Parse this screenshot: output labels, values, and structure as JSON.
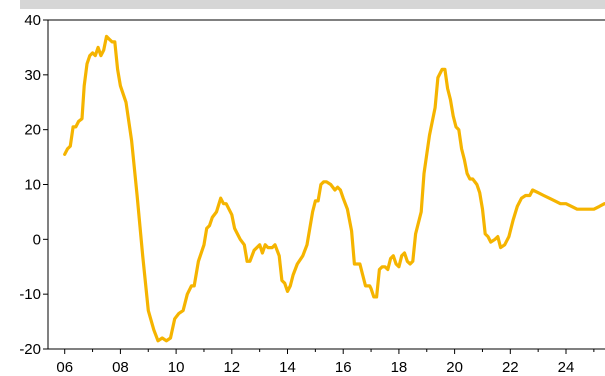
{
  "chart_data": {
    "type": "line",
    "title": "",
    "xlabel": "",
    "ylabel": "",
    "xlim": [
      2005.4,
      2025.4
    ],
    "ylim": [
      -20,
      40
    ],
    "yticks": [
      40,
      30,
      20,
      10,
      0,
      -10,
      -20
    ],
    "ytick_labels": [
      "40",
      "30",
      "20",
      "10",
      "0",
      "-10",
      "-20"
    ],
    "xticks": [
      2006,
      2008,
      2010,
      2012,
      2014,
      2016,
      2018,
      2020,
      2022,
      2024
    ],
    "xtick_labels": [
      "06",
      "08",
      "10",
      "12",
      "14",
      "16",
      "18",
      "20",
      "22",
      "24"
    ],
    "grid": false,
    "legend": "none",
    "series": [
      {
        "color": "#f5b400",
        "points": [
          [
            2006.0,
            15.5
          ],
          [
            2006.1,
            16.5
          ],
          [
            2006.2,
            17.0
          ],
          [
            2006.3,
            20.5
          ],
          [
            2006.4,
            20.5
          ],
          [
            2006.5,
            21.5
          ],
          [
            2006.62,
            22.0
          ],
          [
            2006.7,
            28.0
          ],
          [
            2006.8,
            32.0
          ],
          [
            2006.9,
            33.5
          ],
          [
            2007.0,
            34.0
          ],
          [
            2007.1,
            33.5
          ],
          [
            2007.2,
            35.0
          ],
          [
            2007.3,
            33.5
          ],
          [
            2007.4,
            34.5
          ],
          [
            2007.5,
            37.0
          ],
          [
            2007.6,
            36.5
          ],
          [
            2007.7,
            36.0
          ],
          [
            2007.8,
            36.0
          ],
          [
            2007.9,
            31.0
          ],
          [
            2008.0,
            28.0
          ],
          [
            2008.2,
            25.0
          ],
          [
            2008.4,
            18.0
          ],
          [
            2008.6,
            8.0
          ],
          [
            2008.8,
            -3.0
          ],
          [
            2009.0,
            -13.0
          ],
          [
            2009.2,
            -16.5
          ],
          [
            2009.35,
            -18.5
          ],
          [
            2009.5,
            -18.0
          ],
          [
            2009.65,
            -18.5
          ],
          [
            2009.8,
            -18.0
          ],
          [
            2009.95,
            -14.5
          ],
          [
            2010.1,
            -13.5
          ],
          [
            2010.25,
            -13.0
          ],
          [
            2010.4,
            -10.0
          ],
          [
            2010.55,
            -8.5
          ],
          [
            2010.65,
            -8.5
          ],
          [
            2010.8,
            -4.0
          ],
          [
            2011.0,
            -1.0
          ],
          [
            2011.1,
            2.0
          ],
          [
            2011.2,
            2.5
          ],
          [
            2011.3,
            4.0
          ],
          [
            2011.45,
            5.0
          ],
          [
            2011.6,
            7.5
          ],
          [
            2011.7,
            6.5
          ],
          [
            2011.8,
            6.5
          ],
          [
            2012.0,
            4.5
          ],
          [
            2012.1,
            2.0
          ],
          [
            2012.2,
            1.0
          ],
          [
            2012.3,
            0.0
          ],
          [
            2012.45,
            -1.0
          ],
          [
            2012.55,
            -4.0
          ],
          [
            2012.65,
            -4.0
          ],
          [
            2012.8,
            -2.0
          ],
          [
            2013.0,
            -1.0
          ],
          [
            2013.1,
            -2.5
          ],
          [
            2013.2,
            -1.0
          ],
          [
            2013.3,
            -1.5
          ],
          [
            2013.45,
            -1.5
          ],
          [
            2013.55,
            -1.0
          ],
          [
            2013.7,
            -3.0
          ],
          [
            2013.8,
            -7.5
          ],
          [
            2013.9,
            -8.0
          ],
          [
            2014.0,
            -9.5
          ],
          [
            2014.1,
            -8.5
          ],
          [
            2014.2,
            -6.5
          ],
          [
            2014.35,
            -4.5
          ],
          [
            2014.55,
            -3.0
          ],
          [
            2014.7,
            -1.0
          ],
          [
            2014.8,
            2.0
          ],
          [
            2014.9,
            5.0
          ],
          [
            2015.0,
            7.0
          ],
          [
            2015.1,
            7.0
          ],
          [
            2015.2,
            10.0
          ],
          [
            2015.3,
            10.5
          ],
          [
            2015.4,
            10.5
          ],
          [
            2015.55,
            10.0
          ],
          [
            2015.7,
            9.0
          ],
          [
            2015.8,
            9.5
          ],
          [
            2015.9,
            9.0
          ],
          [
            2016.0,
            7.5
          ],
          [
            2016.15,
            5.5
          ],
          [
            2016.3,
            1.5
          ],
          [
            2016.4,
            -4.5
          ],
          [
            2016.5,
            -4.5
          ],
          [
            2016.6,
            -4.5
          ],
          [
            2016.7,
            -6.5
          ],
          [
            2016.8,
            -8.5
          ],
          [
            2016.95,
            -8.5
          ],
          [
            2017.0,
            -9.0
          ],
          [
            2017.1,
            -10.5
          ],
          [
            2017.2,
            -10.5
          ],
          [
            2017.3,
            -5.5
          ],
          [
            2017.4,
            -5.0
          ],
          [
            2017.5,
            -5.0
          ],
          [
            2017.6,
            -5.5
          ],
          [
            2017.7,
            -3.5
          ],
          [
            2017.8,
            -3.0
          ],
          [
            2017.9,
            -4.5
          ],
          [
            2018.0,
            -5.0
          ],
          [
            2018.1,
            -3.0
          ],
          [
            2018.2,
            -2.5
          ],
          [
            2018.3,
            -4.0
          ],
          [
            2018.4,
            -4.5
          ],
          [
            2018.5,
            -4.0
          ],
          [
            2018.6,
            1.0
          ],
          [
            2018.8,
            5.0
          ],
          [
            2018.9,
            12.0
          ],
          [
            2019.1,
            19.0
          ],
          [
            2019.3,
            24.0
          ],
          [
            2019.4,
            29.5
          ],
          [
            2019.55,
            31.0
          ],
          [
            2019.65,
            31.0
          ],
          [
            2019.75,
            27.5
          ],
          [
            2019.85,
            25.5
          ],
          [
            2019.95,
            22.5
          ],
          [
            2020.05,
            20.5
          ],
          [
            2020.15,
            20.0
          ],
          [
            2020.25,
            16.5
          ],
          [
            2020.35,
            14.5
          ],
          [
            2020.45,
            12.0
          ],
          [
            2020.55,
            11.0
          ],
          [
            2020.65,
            11.0
          ],
          [
            2020.8,
            10.0
          ],
          [
            2020.9,
            8.5
          ],
          [
            2021.0,
            5.5
          ],
          [
            2021.1,
            1.0
          ],
          [
            2021.2,
            0.5
          ],
          [
            2021.3,
            -0.5
          ],
          [
            2021.45,
            0.0
          ],
          [
            2021.55,
            0.5
          ],
          [
            2021.65,
            -1.5
          ],
          [
            2021.8,
            -1.0
          ],
          [
            2021.95,
            0.5
          ],
          [
            2022.1,
            3.5
          ],
          [
            2022.25,
            6.0
          ],
          [
            2022.4,
            7.5
          ],
          [
            2022.55,
            8.0
          ],
          [
            2022.7,
            8.0
          ],
          [
            2022.8,
            9.0
          ],
          [
            2023.0,
            8.5
          ],
          [
            2023.2,
            8.0
          ],
          [
            2023.4,
            7.5
          ],
          [
            2023.6,
            7.0
          ],
          [
            2023.8,
            6.5
          ],
          [
            2024.0,
            6.5
          ],
          [
            2024.2,
            6.0
          ],
          [
            2024.4,
            5.5
          ],
          [
            2024.6,
            5.5
          ],
          [
            2024.8,
            5.5
          ],
          [
            2025.0,
            5.5
          ],
          [
            2025.2,
            6.0
          ],
          [
            2025.38,
            6.5
          ]
        ]
      }
    ]
  }
}
